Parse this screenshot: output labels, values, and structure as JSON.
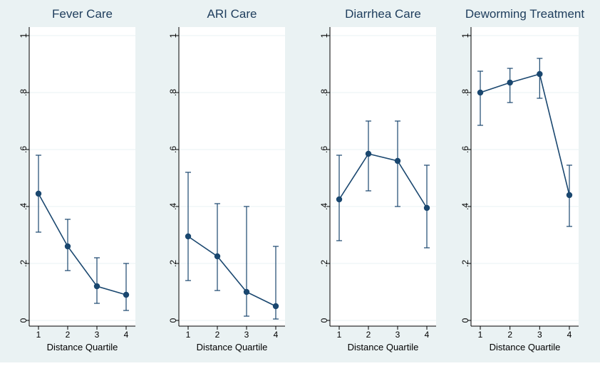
{
  "chart_data": [
    {
      "type": "line",
      "title": "Fever Care",
      "xlabel": "Distance Quartile",
      "ylabel": "",
      "x": [
        1,
        2,
        3,
        4
      ],
      "xticks": [
        "1",
        "2",
        "3",
        "4"
      ],
      "ylim": [
        0,
        1
      ],
      "yticks": [
        "0",
        ".2",
        ".4",
        ".6",
        ".8",
        "1"
      ],
      "grid": true,
      "values": [
        0.445,
        0.26,
        0.12,
        0.09
      ],
      "ci_low": [
        0.31,
        0.175,
        0.06,
        0.035
      ],
      "ci_high": [
        0.58,
        0.355,
        0.22,
        0.2
      ]
    },
    {
      "type": "line",
      "title": "ARI Care",
      "xlabel": "Distance Quartile",
      "ylabel": "",
      "x": [
        1,
        2,
        3,
        4
      ],
      "xticks": [
        "1",
        "2",
        "3",
        "4"
      ],
      "ylim": [
        0,
        1
      ],
      "yticks": [
        "0",
        ".2",
        ".4",
        ".6",
        ".8",
        "1"
      ],
      "grid": true,
      "values": [
        0.295,
        0.225,
        0.1,
        0.05
      ],
      "ci_low": [
        0.14,
        0.105,
        0.015,
        0.005
      ],
      "ci_high": [
        0.52,
        0.41,
        0.4,
        0.26
      ]
    },
    {
      "type": "line",
      "title": "Diarrhea Care",
      "xlabel": "Distance Quartile",
      "ylabel": "",
      "x": [
        1,
        2,
        3,
        4
      ],
      "xticks": [
        "1",
        "2",
        "3",
        "4"
      ],
      "ylim": [
        0,
        1
      ],
      "yticks": [
        "0",
        ".2",
        ".4",
        ".6",
        ".8",
        "1"
      ],
      "grid": true,
      "values": [
        0.425,
        0.585,
        0.56,
        0.395
      ],
      "ci_low": [
        0.28,
        0.455,
        0.4,
        0.255
      ],
      "ci_high": [
        0.58,
        0.7,
        0.7,
        0.545
      ]
    },
    {
      "type": "line",
      "title": "Deworming Treatment",
      "xlabel": "Distance Quartile",
      "ylabel": "",
      "x": [
        1,
        2,
        3,
        4
      ],
      "xticks": [
        "1",
        "2",
        "3",
        "4"
      ],
      "ylim": [
        0,
        1
      ],
      "yticks": [
        "0",
        ".2",
        ".4",
        ".6",
        ".8",
        "1"
      ],
      "grid": true,
      "values": [
        0.8,
        0.835,
        0.865,
        0.44
      ],
      "ci_low": [
        0.685,
        0.765,
        0.78,
        0.33
      ],
      "ci_high": [
        0.875,
        0.885,
        0.92,
        0.545
      ]
    }
  ],
  "colors": {
    "series": "#1a476f",
    "background": "#eaf2f3",
    "plot_area": "#ffffff",
    "grid": "#eaf2f3",
    "title": "#1e3d5c"
  }
}
